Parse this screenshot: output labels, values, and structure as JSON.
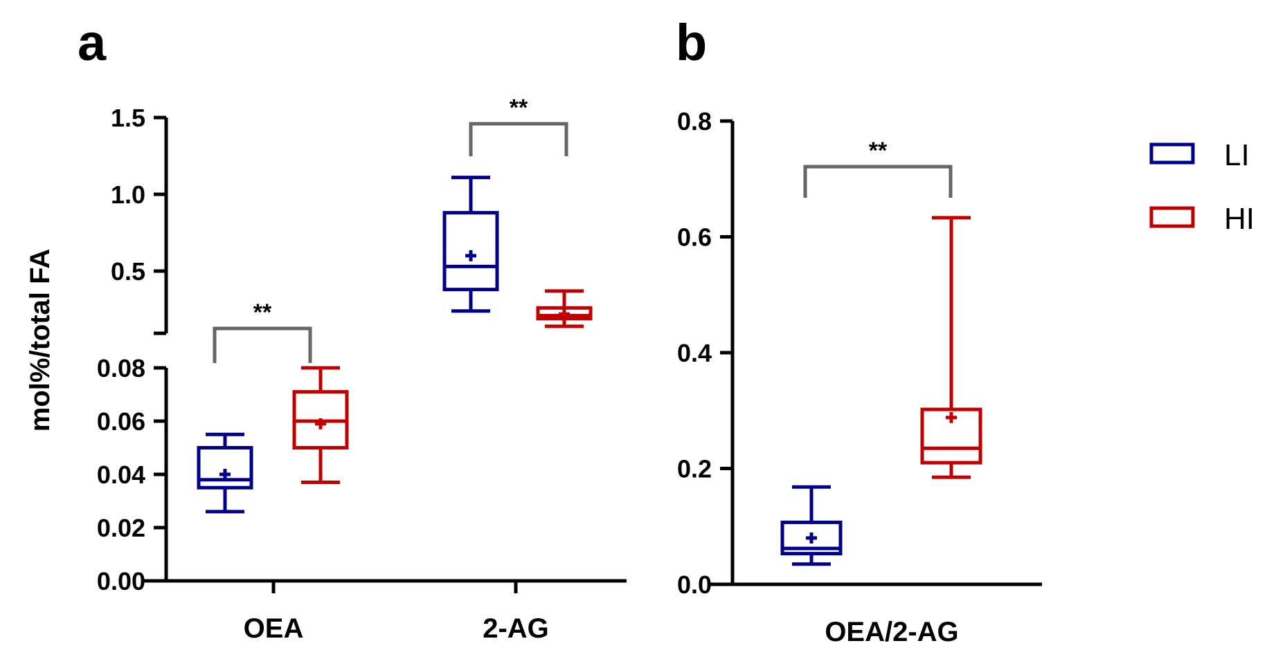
{
  "chart_data": [
    {
      "panel": "a",
      "type": "box",
      "ylabel": "mol%/total FA",
      "categories": [
        "OEA",
        "2-AG"
      ],
      "axis_break": true,
      "upper_segment": {
        "ylim": [
          0.1,
          1.5
        ],
        "ticks": [
          "1.5",
          "1.0",
          "0.5"
        ],
        "tick_values": [
          1.5,
          1.0,
          0.5
        ]
      },
      "lower_segment": {
        "ylim": [
          0.0,
          0.08
        ],
        "ticks": [
          "0.08",
          "0.06",
          "0.04",
          "0.02",
          "0.00"
        ],
        "tick_values": [
          0.08,
          0.06,
          0.04,
          0.02,
          0.0
        ]
      },
      "series": [
        {
          "name": "LI",
          "color": "#00008B",
          "boxes": [
            {
              "category": "OEA",
              "min": 0.026,
              "q1": 0.035,
              "median": 0.038,
              "q3": 0.05,
              "max": 0.055,
              "mean": 0.04
            },
            {
              "category": "2-AG",
              "min": 0.24,
              "q1": 0.38,
              "median": 0.53,
              "q3": 0.88,
              "max": 1.11,
              "mean": 0.6
            }
          ]
        },
        {
          "name": "HI",
          "color": "#C00000",
          "boxes": [
            {
              "category": "OEA",
              "min": 0.037,
              "q1": 0.05,
              "median": 0.06,
              "q3": 0.071,
              "max": 0.08,
              "mean": 0.059
            },
            {
              "category": "2-AG",
              "min": 0.14,
              "q1": 0.19,
              "median": 0.21,
              "q3": 0.26,
              "max": 0.37,
              "mean": 0.22
            }
          ]
        }
      ],
      "significance": [
        {
          "category": "OEA",
          "label": "**"
        },
        {
          "category": "2-AG",
          "label": "**"
        }
      ]
    },
    {
      "panel": "b",
      "type": "box",
      "ylabel": "",
      "categories": [
        "OEA/2-AG"
      ],
      "ylim": [
        0.0,
        0.8
      ],
      "ticks": [
        "0.8",
        "0.6",
        "0.4",
        "0.2",
        "0.0"
      ],
      "tick_values": [
        0.8,
        0.6,
        0.4,
        0.2,
        0.0
      ],
      "series": [
        {
          "name": "LI",
          "color": "#00008B",
          "boxes": [
            {
              "category": "OEA/2-AG",
              "min": 0.035,
              "q1": 0.053,
              "median": 0.062,
              "q3": 0.107,
              "max": 0.168,
              "mean": 0.08
            }
          ]
        },
        {
          "name": "HI",
          "color": "#C00000",
          "boxes": [
            {
              "category": "OEA/2-AG",
              "min": 0.185,
              "q1": 0.21,
              "median": 0.235,
              "q3": 0.302,
              "max": 0.633,
              "mean": 0.288
            }
          ]
        }
      ],
      "significance": [
        {
          "category": "OEA/2-AG",
          "label": "**"
        }
      ]
    }
  ],
  "legend": [
    {
      "label": "LI",
      "color": "#00008B"
    },
    {
      "label": "HI",
      "color": "#C00000"
    }
  ],
  "colors": {
    "bracket": "#666666",
    "axis": "#000000"
  }
}
